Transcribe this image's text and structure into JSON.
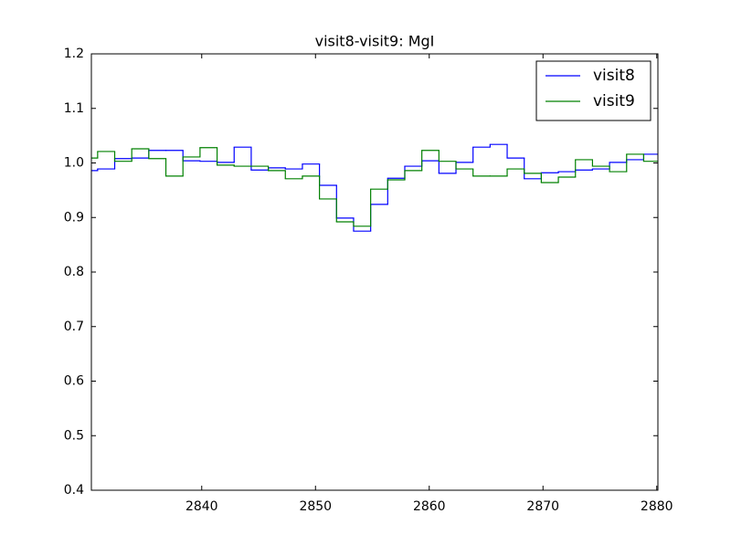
{
  "chart_data": {
    "type": "step",
    "title": "visit8-visit9: MgI",
    "x": [
      2830.1,
      2831.6,
      2833.1,
      2834.6,
      2836.1,
      2837.6,
      2839.1,
      2840.6,
      2842.1,
      2843.6,
      2845.1,
      2846.6,
      2848.1,
      2849.6,
      2851.1,
      2852.6,
      2854.1,
      2855.6,
      2857.1,
      2858.6,
      2860.1,
      2861.6,
      2863.1,
      2864.6,
      2866.1,
      2867.6,
      2869.1,
      2870.6,
      2872.1,
      2873.6,
      2875.1,
      2876.6,
      2878.1,
      2879.6
    ],
    "series": [
      {
        "name": "visit8",
        "color": "#0000ff",
        "values": [
          0.986,
          0.989,
          1.008,
          1.009,
          1.023,
          1.023,
          1.004,
          1.003,
          1.001,
          1.029,
          0.987,
          0.991,
          0.989,
          0.998,
          0.959,
          0.899,
          0.875,
          0.924,
          0.972,
          0.994,
          1.004,
          0.981,
          1.001,
          1.029,
          1.034,
          1.009,
          0.971,
          0.982,
          0.984,
          0.987,
          0.989,
          1.001,
          1.006,
          1.016
        ]
      },
      {
        "name": "visit9",
        "color": "#008000",
        "values": [
          1.009,
          1.021,
          1.003,
          1.026,
          1.008,
          0.976,
          1.011,
          1.028,
          0.996,
          0.994,
          0.994,
          0.986,
          0.971,
          0.976,
          0.934,
          0.892,
          0.884,
          0.952,
          0.969,
          0.986,
          1.023,
          1.003,
          0.989,
          0.976,
          0.976,
          0.989,
          0.981,
          0.964,
          0.974,
          1.006,
          0.994,
          0.984,
          1.016,
          1.003
        ]
      }
    ],
    "xlim": [
      2830.3,
      2880.1
    ],
    "xticks": [
      2840,
      2850,
      2860,
      2870,
      2880
    ],
    "ylim": [
      0.4,
      1.2
    ],
    "yticks": [
      0.4,
      0.5,
      0.6,
      0.7,
      0.8,
      0.9,
      {
        "value": 1,
        "label": "1.0"
      },
      1.1,
      1.2
    ],
    "grid": false,
    "legend": "upper right"
  }
}
